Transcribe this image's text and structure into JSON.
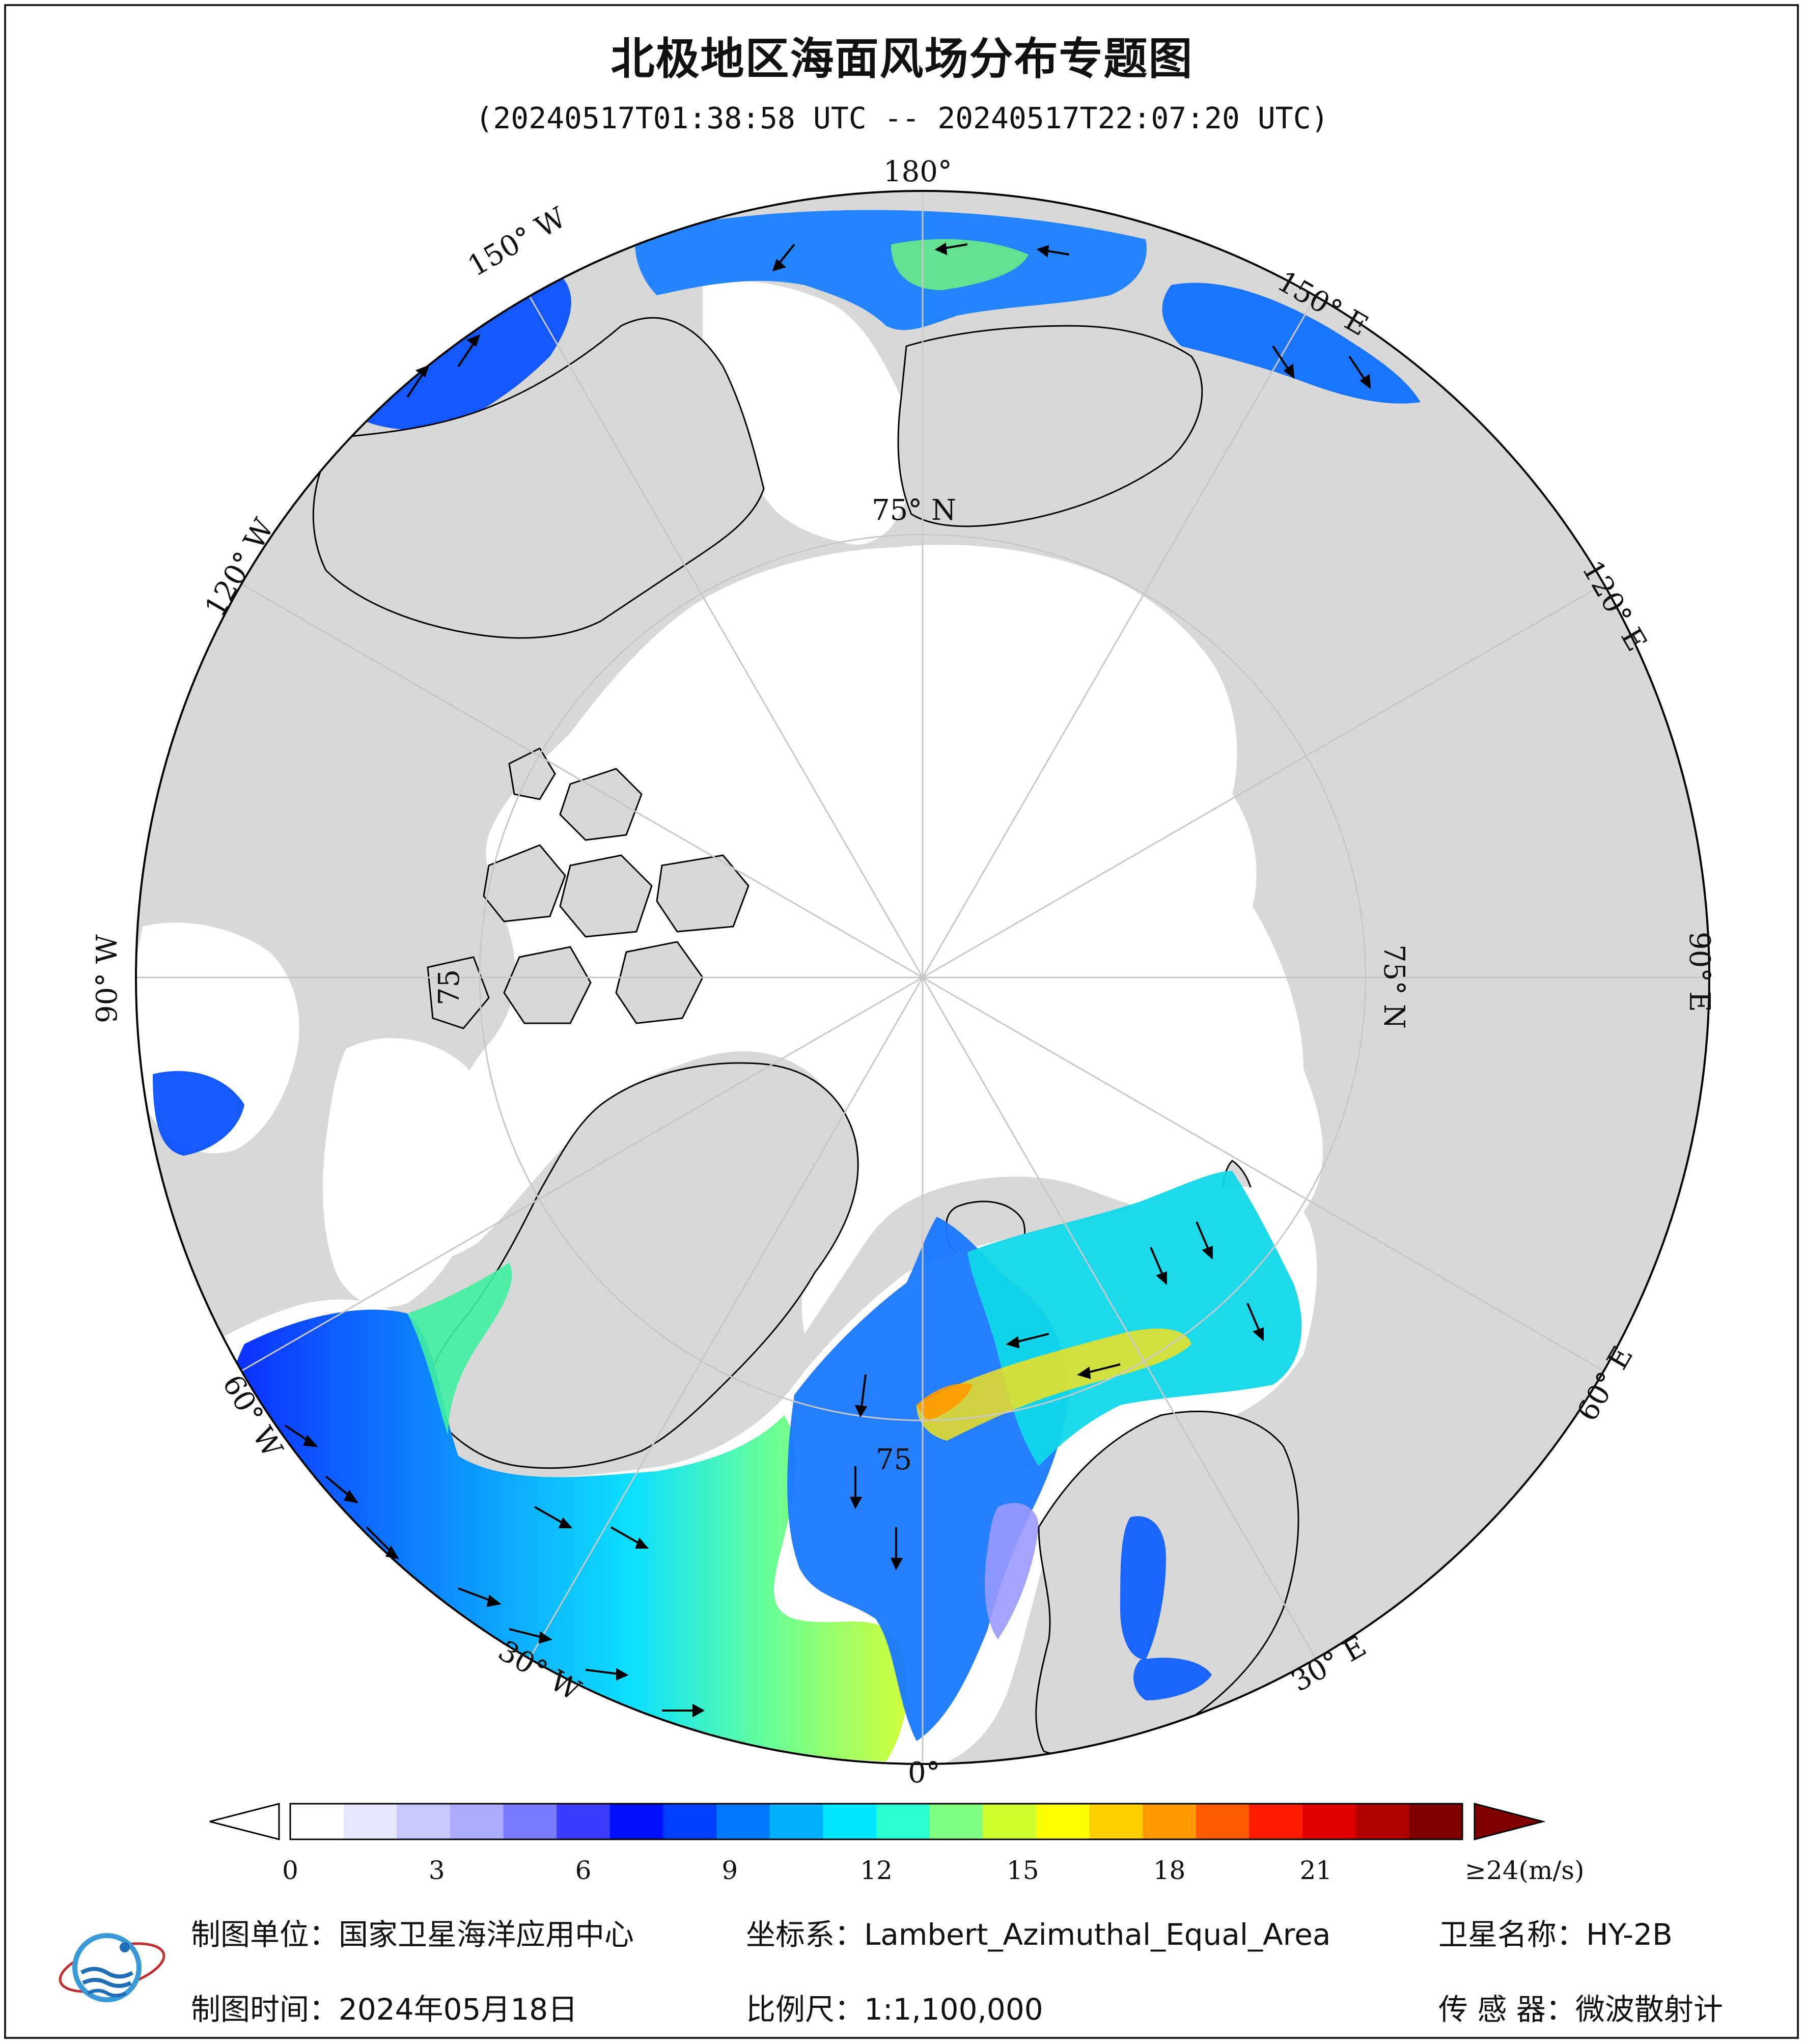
{
  "title": "北极地区海面风场分布专题图",
  "subtitle": "(20240517T01:38:58 UTC -- 20240517T22:07:20 UTC)",
  "map": {
    "longitude_labels": {
      "lon_180": "180°",
      "lon_150w": "150° W",
      "lon_120w": "120° W",
      "lon_90w": "90° W",
      "lon_60w": "60° W",
      "lon_30w": "30° W",
      "lon_0": "0°",
      "lon_30e": "30° E",
      "lon_60e": "60° E",
      "lon_90e": "90° E",
      "lon_120e": "120° E",
      "lon_150e": "150° E"
    },
    "latitude_labels": {
      "lat_75n_top": "75° N",
      "lat_75n_right": "75° N",
      "lat_75_left": "75",
      "lat_75_bottom": "75"
    },
    "colors": {
      "ocean_no_data": "#ffffff",
      "land": "#d8d8d8",
      "coastline": "#000000",
      "graticule": "#cccccc"
    }
  },
  "colorbar": {
    "unit_label": "≥24(m/s)",
    "ticks": [
      "0",
      "3",
      "6",
      "9",
      "12",
      "15",
      "18",
      "21"
    ],
    "tick_values": [
      0,
      3,
      6,
      9,
      12,
      15,
      18,
      21
    ],
    "max_value": 24,
    "colors": [
      "#ffffff",
      "#e6e6ff",
      "#c8c8ff",
      "#aaaaff",
      "#7a7aff",
      "#3c3cff",
      "#0010ff",
      "#0040ff",
      "#0078ff",
      "#00b0ff",
      "#00e6ff",
      "#2cffd0",
      "#80ff80",
      "#d0ff30",
      "#ffff00",
      "#ffd000",
      "#ff9a00",
      "#ff5a00",
      "#ff1a00",
      "#e00000",
      "#b00000",
      "#800000"
    ]
  },
  "footer": {
    "org_label": "制图单位：国家卫星海洋应用中心",
    "crs_label": "坐标系：Lambert_Azimuthal_Equal_Area",
    "satellite_label": "卫星名称：HY-2B",
    "date_label": "制图时间：2024年05月18日",
    "scale_label": "比例尺：1:1,100,000",
    "sensor_label": "传 感 器：微波散射计"
  }
}
